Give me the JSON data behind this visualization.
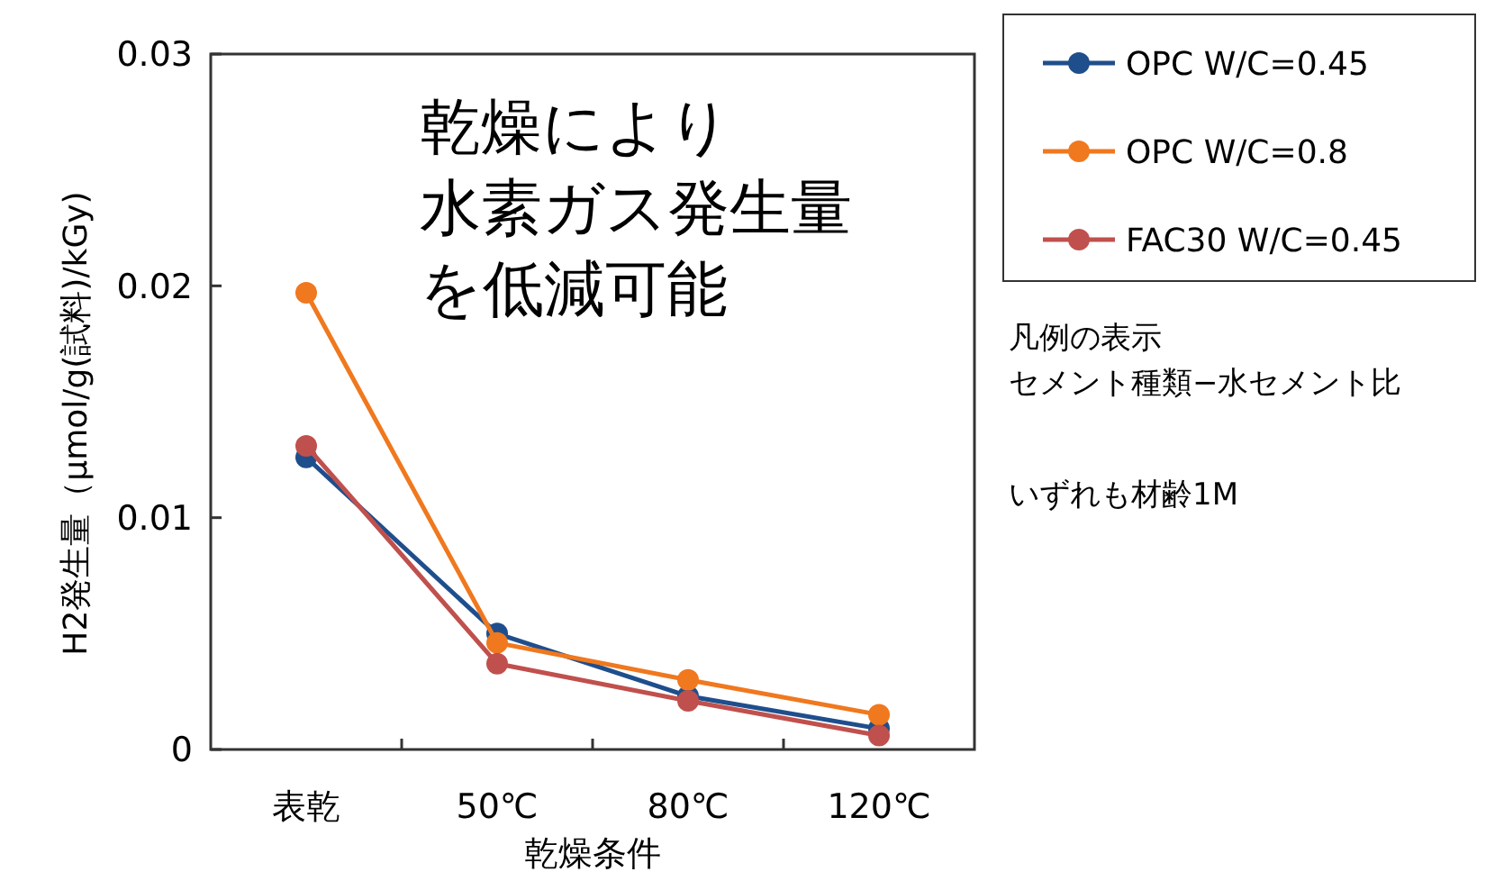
{
  "chart_data": {
    "type": "line",
    "xlabel": "乾燥条件",
    "ylabel": "H2発生量（μmol/g(試料)/kGy)",
    "categories": [
      "表乾",
      "50℃",
      "80℃",
      "120℃"
    ],
    "series": [
      {
        "name": "OPC W/C=0.45",
        "color": "#1f4e8c",
        "values": [
          0.0126,
          0.005,
          0.0023,
          0.0009
        ]
      },
      {
        "name": "OPC W/C=0.8",
        "color": "#f0781e",
        "values": [
          0.0197,
          0.0046,
          0.003,
          0.0015
        ]
      },
      {
        "name": "FAC30 W/C=0.45",
        "color": "#c0504d",
        "values": [
          0.0131,
          0.0037,
          0.0021,
          0.0006
        ]
      }
    ],
    "ylim": [
      0,
      0.03
    ],
    "yticks": [
      0,
      0.01,
      0.02,
      0.03
    ],
    "grid": false,
    "legend": "top right",
    "marker": "circle",
    "line_style": "solid",
    "annotations": [
      "乾燥により",
      "水素ガス発生量",
      "を低減可能",
      "凡例の表示",
      "セメント種類−水セメント比",
      "いずれも材齢1M"
    ]
  }
}
